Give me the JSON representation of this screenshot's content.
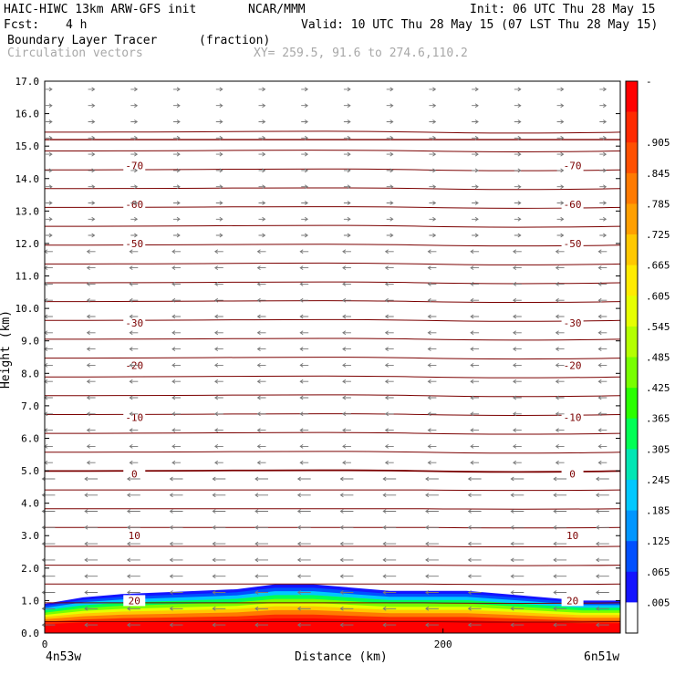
{
  "header": {
    "model": "HAIC-HIWC 13km ARW-GFS init",
    "org": "NCAR/MMM",
    "init": "Init: 06 UTC Thu 28 May 15",
    "fcst_label": "Fcst:",
    "fcst_value": "4 h",
    "valid": "Valid: 10 UTC Thu 28 May 15 (07 LST Thu 28 May 15)",
    "field": "Boundary Layer Tracer",
    "units": "(fraction)",
    "vectors": "Circulation vectors",
    "xy": "XY= 259.5, 91.6 to 274.6,110.2"
  },
  "chart_data": {
    "type": "heatmap",
    "title": "Boundary Layer Tracer",
    "xlabel": "Distance (km)",
    "ylabel": "Height (km)",
    "xlim": [
      0,
      289
    ],
    "ylim": [
      0,
      17
    ],
    "x_ticks": [
      "0",
      "200"
    ],
    "x_tick_values": [
      0,
      200
    ],
    "x_end_labels": [
      "4n53w",
      "6n51w"
    ],
    "y_ticks": [
      "0.0",
      "1.0",
      "2.0",
      "3.0",
      "4.0",
      "5.0",
      "6.0",
      "7.0",
      "8.0",
      "9.0",
      "10.0",
      "11.0",
      "12.0",
      "13.0",
      "14.0",
      "15.0",
      "16.0",
      "17.0"
    ],
    "colorbar_labels": [
      "-",
      ".905",
      ".845",
      ".785",
      ".725",
      ".665",
      ".605",
      ".545",
      ".485",
      ".425",
      ".365",
      ".305",
      ".245",
      ".185",
      ".125",
      ".065",
      ".005"
    ],
    "colorbar_colors": [
      "#ff0000",
      "#ff2a00",
      "#ff5000",
      "#ff7a00",
      "#ff9f00",
      "#ffc800",
      "#ffeb00",
      "#e6ff00",
      "#b4ff00",
      "#78ff00",
      "#2aff00",
      "#00ff55",
      "#00e6b4",
      "#00c8ff",
      "#0096ff",
      "#0050ff",
      "#1414ff",
      "#ffffff"
    ],
    "contour_color": "#7b0000",
    "temperature_contour_labels": [
      {
        "value": "-70",
        "height_km": 14.4
      },
      {
        "value": "-60",
        "height_km": 13.2
      },
      {
        "value": "-50",
        "height_km": 12.0
      },
      {
        "value": "-30",
        "height_km": 9.55
      },
      {
        "value": "-20",
        "height_km": 8.25
      },
      {
        "value": "-10",
        "height_km": 6.65
      },
      {
        "value": "0",
        "height_km": 4.9
      },
      {
        "value": "10",
        "height_km": 3.0
      },
      {
        "value": "20",
        "height_km": 1.0
      }
    ],
    "tracer_top_km": [
      0.9,
      1.1,
      1.2,
      1.25,
      1.3,
      1.35,
      1.5,
      1.5,
      1.4,
      1.3,
      1.3,
      1.3,
      1.2,
      1.1,
      1.0,
      1.0
    ],
    "vectors_direction": "westward below 12 km, eastward aloft"
  }
}
